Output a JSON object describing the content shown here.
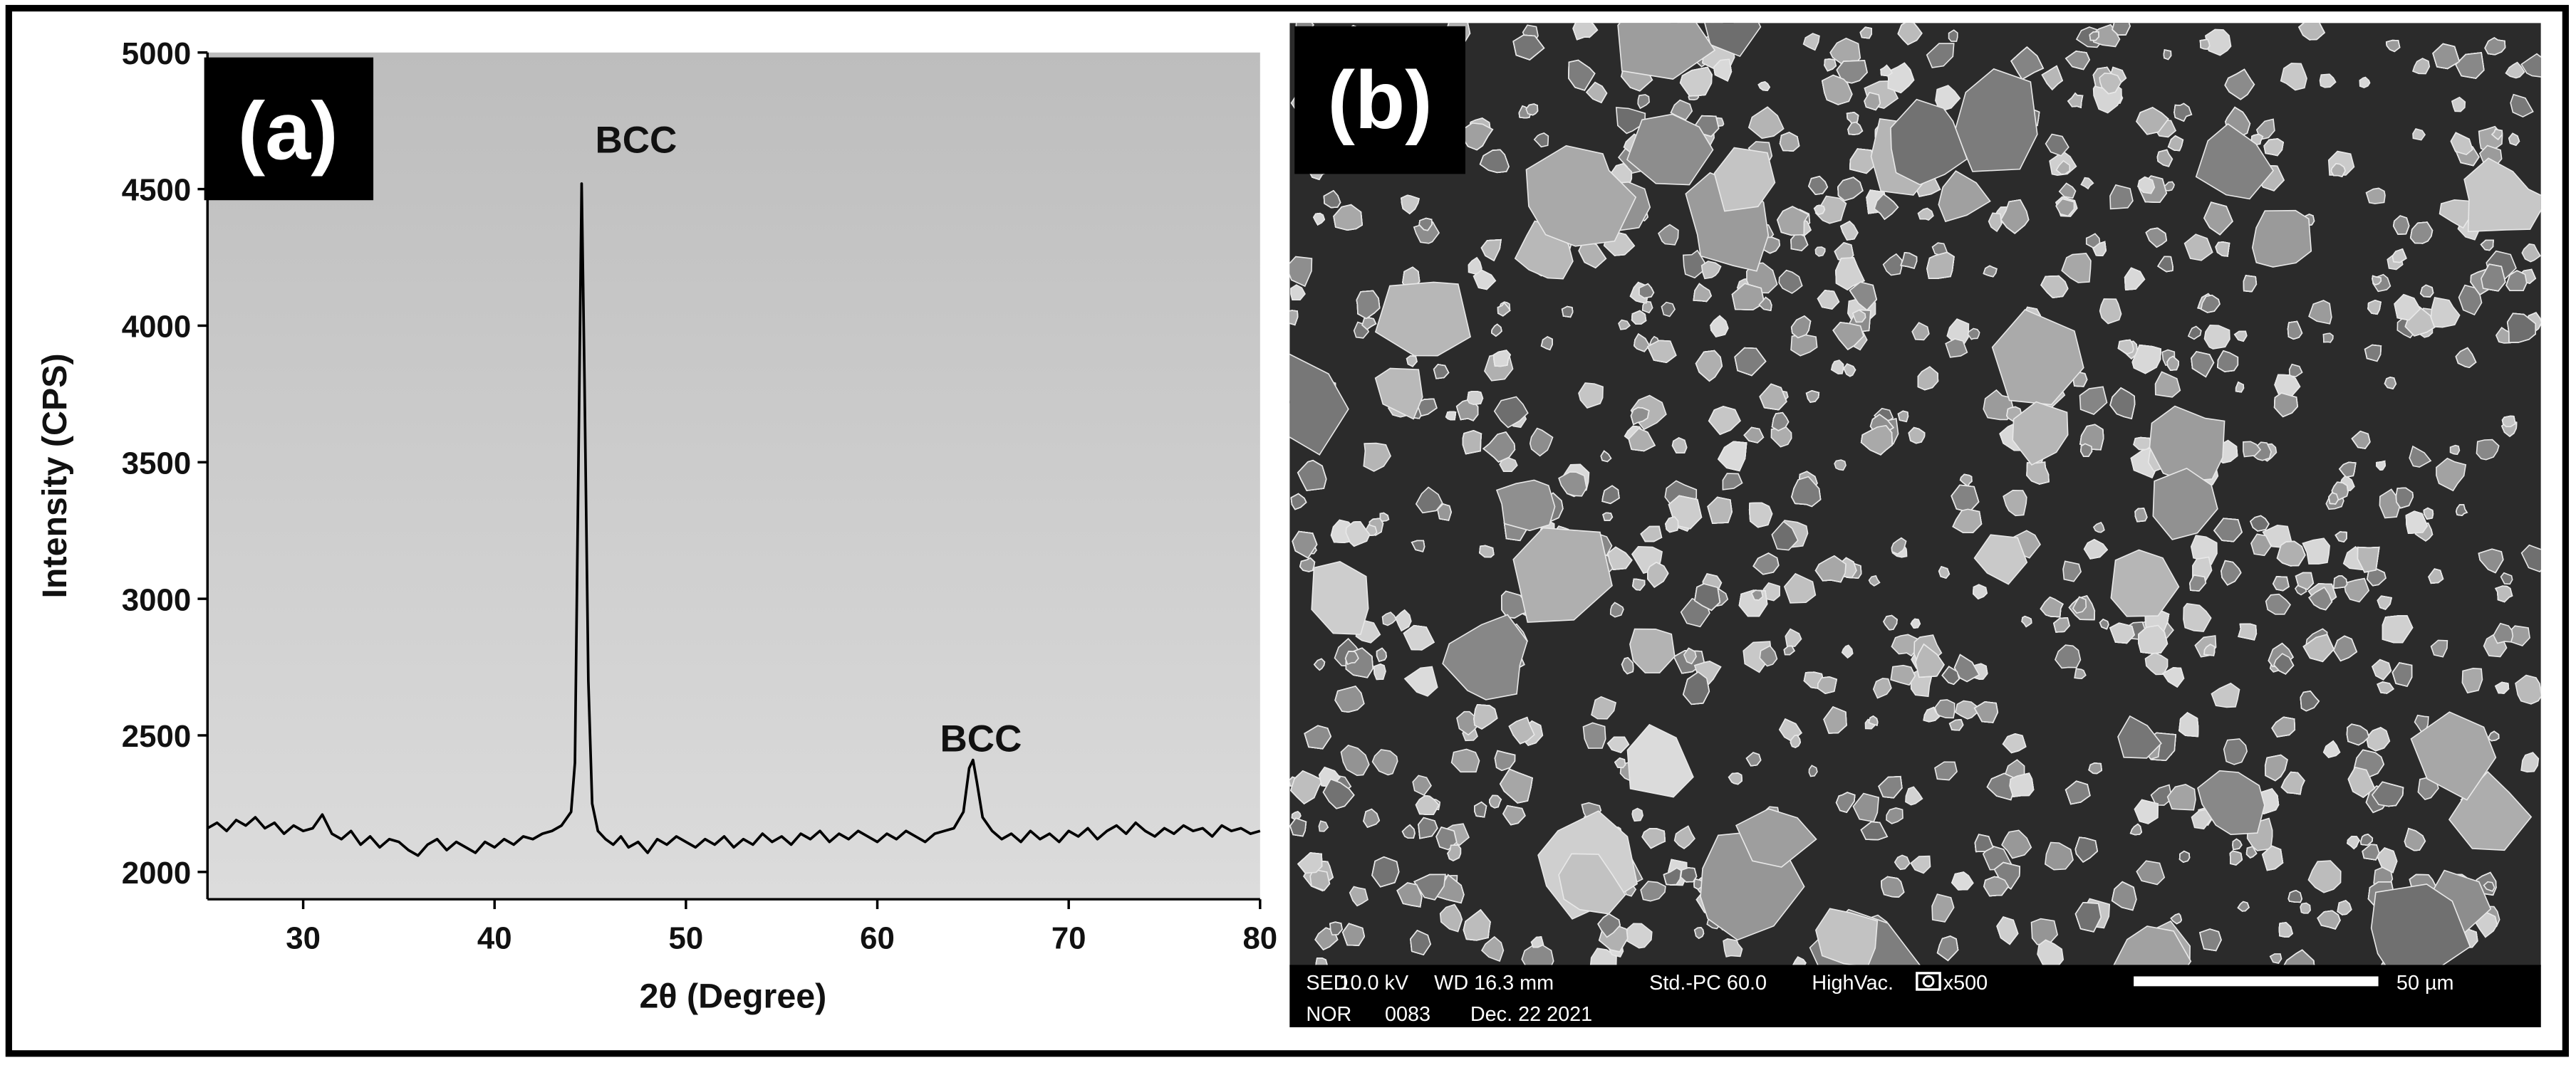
{
  "chart_data": {
    "type": "line",
    "xlabel": "2θ (Degree)",
    "ylabel": "Intensity (CPS)",
    "panel_label": "(a)",
    "annotations": [
      "BCC",
      "BCC"
    ],
    "color": "#000000",
    "xlim": [
      25,
      80
    ],
    "xticks": [
      30,
      40,
      50,
      60,
      70,
      80
    ],
    "ylim": [
      1900,
      5000
    ],
    "yticks": [
      2000,
      2500,
      3000,
      3500,
      4000,
      4500,
      5000
    ],
    "x": [
      25,
      25.5,
      26,
      26.5,
      27,
      27.5,
      28,
      28.5,
      29,
      29.5,
      30,
      30.5,
      31,
      31.5,
      32,
      32.5,
      33,
      33.5,
      34,
      34.5,
      35,
      35.5,
      36,
      36.5,
      37,
      37.5,
      38,
      38.5,
      39,
      39.5,
      40,
      40.5,
      41,
      41.5,
      42,
      42.5,
      43,
      43.5,
      44,
      44.2,
      44.4,
      44.55,
      44.7,
      44.9,
      45.1,
      45.4,
      45.8,
      46.2,
      46.6,
      47,
      47.5,
      48,
      48.5,
      49,
      49.5,
      50,
      50.5,
      51,
      51.5,
      52,
      52.5,
      53,
      53.5,
      54,
      54.5,
      55,
      55.5,
      56,
      56.5,
      57,
      57.5,
      58,
      58.5,
      59,
      59.5,
      60,
      60.5,
      61,
      61.5,
      62,
      62.5,
      63,
      63.5,
      64,
      64.5,
      64.8,
      65,
      65.2,
      65.5,
      66,
      66.5,
      67,
      67.5,
      68,
      68.5,
      69,
      69.5,
      70,
      70.5,
      71,
      71.5,
      72,
      72.5,
      73,
      73.5,
      74,
      74.5,
      75,
      75.5,
      76,
      76.5,
      77,
      77.5,
      78,
      78.5,
      79,
      79.5,
      80
    ],
    "values": [
      2160,
      2180,
      2150,
      2190,
      2170,
      2200,
      2160,
      2180,
      2140,
      2170,
      2150,
      2160,
      2210,
      2140,
      2120,
      2150,
      2100,
      2130,
      2090,
      2120,
      2110,
      2080,
      2060,
      2100,
      2120,
      2080,
      2110,
      2090,
      2070,
      2110,
      2090,
      2120,
      2100,
      2130,
      2120,
      2140,
      2150,
      2170,
      2220,
      2400,
      3600,
      4520,
      3800,
      2700,
      2250,
      2150,
      2120,
      2100,
      2130,
      2090,
      2110,
      2070,
      2120,
      2100,
      2130,
      2110,
      2090,
      2120,
      2100,
      2130,
      2090,
      2120,
      2100,
      2140,
      2110,
      2130,
      2100,
      2140,
      2120,
      2150,
      2110,
      2140,
      2120,
      2150,
      2130,
      2110,
      2140,
      2120,
      2150,
      2130,
      2110,
      2140,
      2150,
      2160,
      2220,
      2380,
      2410,
      2330,
      2200,
      2150,
      2120,
      2140,
      2110,
      2150,
      2120,
      2140,
      2110,
      2150,
      2130,
      2160,
      2120,
      2150,
      2170,
      2140,
      2180,
      2150,
      2130,
      2160,
      2140,
      2170,
      2150,
      2160,
      2130,
      2170,
      2150,
      2160,
      2140,
      2150
    ]
  },
  "sem_image": {
    "panel_label": "(b)",
    "info_row_1": [
      "SED",
      "10.0 kV",
      "WD 16.3 mm",
      "Std.-PC 60.0",
      "HighVac.",
      "x500",
      "50 µm"
    ],
    "info_row_2": [
      "NOR",
      "0083",
      "Dec. 22 2021"
    ]
  }
}
